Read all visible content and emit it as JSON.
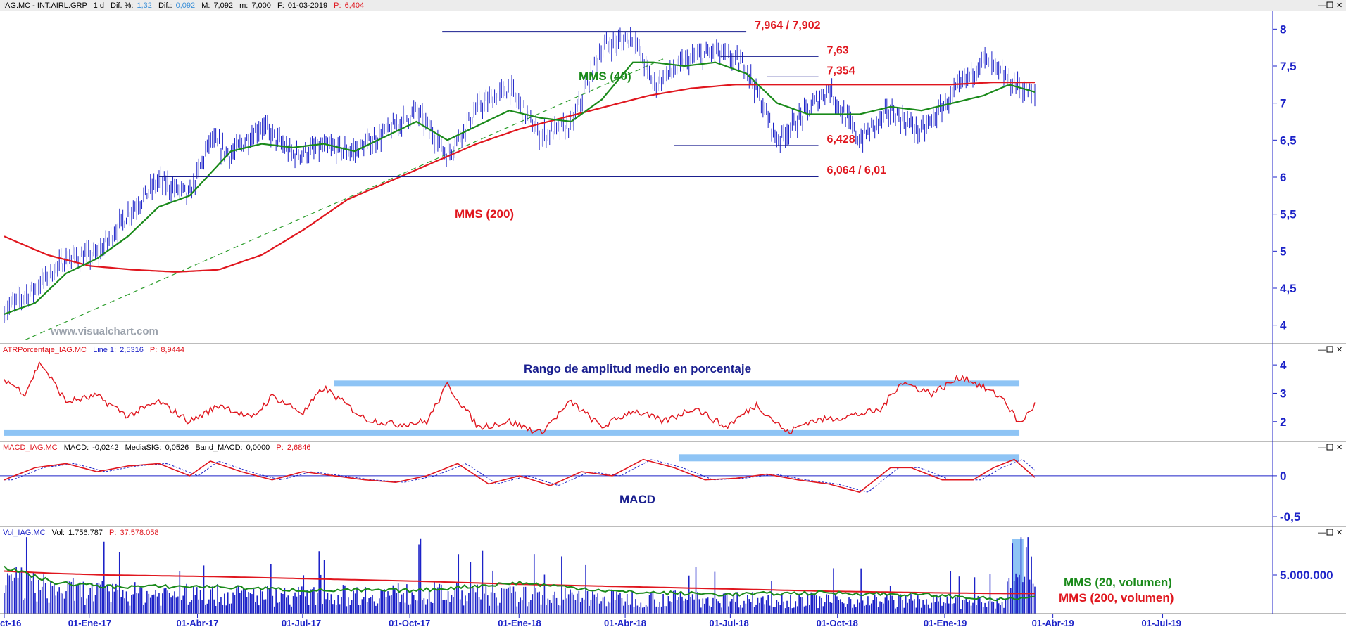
{
  "chart_data": [
    {
      "type": "line",
      "panel": "price",
      "header": {
        "symbol": "IAG.MC - INT.AIRL.GRP",
        "period": "1 d",
        "dif_pct_label": "Dif. %:",
        "dif_pct": "1,32",
        "dif_label": "Dif.:",
        "dif": "0,092",
        "max_label": "M:",
        "max": "7,092",
        "min_label": "m:",
        "min": "7,000",
        "date_label": "F:",
        "date": "01-03-2019",
        "last_label": "P:",
        "last": "6,404"
      },
      "watermark": "www.visualchart.com",
      "y_ticks": [
        "8",
        "7,5",
        "7",
        "6,5",
        "6",
        "5,5",
        "5",
        "4,5",
        "4"
      ],
      "y_tick_values": [
        8,
        7.5,
        7,
        6.5,
        6,
        5.5,
        5,
        4.5,
        4
      ],
      "ylim": [
        3.75,
        8.25
      ],
      "price_anchors_x": [
        0,
        0.03,
        0.06,
        0.09,
        0.12,
        0.15,
        0.18,
        0.2,
        0.22,
        0.25,
        0.28,
        0.31,
        0.34,
        0.37,
        0.4,
        0.43,
        0.46,
        0.49,
        0.52,
        0.55,
        0.58,
        0.61,
        0.63,
        0.66,
        0.69,
        0.72,
        0.75,
        0.78,
        0.8,
        0.83,
        0.86,
        0.89,
        0.92,
        0.95,
        0.975,
        1.0
      ],
      "price_anchors_y": [
        4.2,
        4.5,
        4.9,
        4.95,
        5.5,
        5.95,
        5.75,
        6.5,
        6.3,
        6.7,
        6.3,
        6.4,
        6.35,
        6.6,
        6.9,
        6.3,
        6.95,
        7.2,
        6.55,
        6.7,
        7.75,
        7.9,
        7.25,
        7.55,
        7.7,
        7.5,
        6.5,
        6.9,
        7.2,
        6.5,
        6.9,
        6.6,
        7.1,
        7.6,
        7.3,
        7.1
      ],
      "mms40_anchors_y": [
        4.15,
        4.3,
        4.7,
        4.9,
        5.2,
        5.6,
        5.75,
        6.05,
        6.35,
        6.45,
        6.4,
        6.45,
        6.35,
        6.55,
        6.75,
        6.5,
        6.7,
        6.9,
        6.8,
        6.75,
        7.05,
        7.55,
        7.55,
        7.5,
        7.55,
        7.4,
        7.0,
        6.85,
        6.85,
        6.85,
        6.95,
        6.9,
        7.0,
        7.1,
        7.25,
        7.15
      ],
      "mms200_anchors_y": [
        5.2,
        4.95,
        4.8,
        4.75,
        4.72,
        4.75,
        4.95,
        5.3,
        5.7,
        5.95,
        6.2,
        6.45,
        6.65,
        6.8,
        6.95,
        7.1,
        7.2,
        7.25,
        7.25,
        7.25,
        7.25,
        7.25,
        7.25,
        7.28,
        7.28
      ],
      "levels": [
        {
          "label": "7,964 / 7,902",
          "value": 7.964,
          "x0": 0.425,
          "x1": 0.72
        },
        {
          "label": "7,63",
          "value": 7.63,
          "x0": 0.695,
          "x1": 0.79
        },
        {
          "label": "7,354",
          "value": 7.354,
          "x0": 0.74,
          "x1": 0.79
        },
        {
          "label": "6,428",
          "value": 6.428,
          "x0": 0.65,
          "x1": 0.79
        },
        {
          "label": "6,064 / 6,01",
          "value": 6.01,
          "x0": 0.15,
          "x1": 0.79
        }
      ],
      "trendline": {
        "from": [
          0.02,
          3.8
        ],
        "to": [
          0.64,
          7.6
        ]
      },
      "annotations": [
        {
          "label": "MMS (40)",
          "color": "#1a8a1a"
        },
        {
          "label": "MMS (200)",
          "color": "#e0161e"
        }
      ],
      "colors": {
        "price": "#1c22c8",
        "mms40": "#1a8a1a",
        "mms200": "#e0161e",
        "levels": "#1a1f8f",
        "trend": "#2e9e2e"
      }
    },
    {
      "type": "line",
      "panel": "atr",
      "header": {
        "name": "ATRPorcentaje_IAG.MC",
        "line_label": "Line 1:",
        "line": "2,5316",
        "p_label": "P:",
        "p": "8,9444"
      },
      "title": "Rango de amplitud medio en porcentaje",
      "y_ticks": [
        "4",
        "3",
        "2"
      ],
      "y_tick_values": [
        4,
        3,
        2
      ],
      "ylim": [
        1.3,
        4.4
      ],
      "anchors_x": [
        0,
        0.02,
        0.035,
        0.06,
        0.09,
        0.12,
        0.15,
        0.18,
        0.21,
        0.24,
        0.26,
        0.29,
        0.31,
        0.35,
        0.38,
        0.41,
        0.43,
        0.46,
        0.49,
        0.52,
        0.55,
        0.58,
        0.61,
        0.64,
        0.67,
        0.7,
        0.73,
        0.76,
        0.78,
        0.82,
        0.85,
        0.87,
        0.9,
        0.93,
        0.95,
        0.97,
        0.985,
        1.0
      ],
      "anchors_y": [
        3.5,
        3.0,
        4.1,
        2.7,
        2.9,
        2.2,
        2.7,
        2.0,
        2.6,
        2.1,
        2.9,
        2.3,
        3.2,
        2.1,
        1.9,
        2.0,
        3.3,
        1.8,
        2.0,
        1.6,
        2.7,
        1.8,
        2.4,
        2.0,
        2.5,
        1.8,
        2.6,
        1.6,
        2.0,
        2.2,
        2.4,
        3.4,
        3.0,
        3.6,
        3.2,
        2.8,
        1.9,
        2.6
      ],
      "bands": [
        {
          "value": 3.35,
          "x0": 0.32,
          "x1": 0.985
        },
        {
          "value": 1.6,
          "x0": 0.0,
          "x1": 0.985
        }
      ],
      "colors": {
        "line": "#e0161e",
        "band": "#8ec4f5"
      }
    },
    {
      "type": "line",
      "panel": "macd",
      "header": {
        "name": "MACD_IAG.MC",
        "macd_label": "MACD:",
        "macd": "-0,0242",
        "sig_label": "MediaSIG:",
        "sig": "0,0526",
        "band_label": "Band_MACD:",
        "band": "0,0000",
        "p_label": "P:",
        "p": "2,6846"
      },
      "title": "MACD",
      "y_ticks": [
        "0",
        "-0,5"
      ],
      "y_tick_values": [
        0,
        -0.5
      ],
      "ylim": [
        -0.62,
        0.3
      ],
      "anchors_x": [
        0,
        0.03,
        0.06,
        0.09,
        0.12,
        0.15,
        0.18,
        0.2,
        0.23,
        0.26,
        0.29,
        0.32,
        0.35,
        0.38,
        0.41,
        0.44,
        0.47,
        0.5,
        0.53,
        0.56,
        0.59,
        0.62,
        0.65,
        0.68,
        0.71,
        0.74,
        0.77,
        0.8,
        0.83,
        0.86,
        0.88,
        0.91,
        0.94,
        0.96,
        0.98,
        1.0
      ],
      "anchors_y": [
        -0.05,
        0.1,
        0.15,
        0.05,
        0.12,
        0.15,
        0.0,
        0.18,
        0.05,
        -0.05,
        0.05,
        0.0,
        -0.05,
        -0.08,
        0.0,
        0.15,
        -0.1,
        0.0,
        -0.12,
        0.05,
        0.0,
        0.2,
        0.1,
        -0.05,
        -0.03,
        0.02,
        -0.05,
        -0.1,
        -0.2,
        0.1,
        0.1,
        -0.05,
        -0.05,
        0.1,
        0.2,
        -0.02
      ],
      "zero": 0,
      "band": {
        "value": 0.22,
        "x0": 0.655,
        "x1": 0.985
      },
      "colors": {
        "macd": "#e0161e",
        "signal": "#1c22c8",
        "zero": "#1c22c8",
        "band": "#8ec4f5"
      }
    },
    {
      "type": "bar",
      "panel": "volume",
      "header": {
        "name": "Vol_IAG.MC",
        "vol_label": "Vol:",
        "vol": "1.756.787",
        "p_label": "P:",
        "p": "37.578.058"
      },
      "y_ticks": [
        "5.000.000"
      ],
      "y_tick_values": [
        5000000
      ],
      "ylim": [
        0,
        10000000
      ],
      "volume_envelope_x": [
        0,
        0.05,
        0.1,
        0.2,
        0.3,
        0.4,
        0.5,
        0.6,
        0.7,
        0.8,
        0.9,
        0.97,
        0.98,
        1.0
      ],
      "volume_envelope_y": [
        5500000,
        4000000,
        3500000,
        3200000,
        3000000,
        3500000,
        3000000,
        2600000,
        2500000,
        2300000,
        2100000,
        1800000,
        9500000,
        9500000
      ],
      "mms20_anchors_y": [
        6000000,
        4000000,
        3500000,
        3500000,
        3000000,
        3000000,
        4000000,
        2800000,
        2500000,
        2700000,
        2400000,
        1800000,
        2000000,
        2000000
      ],
      "mms200_anchors_y": [
        5500000,
        5200000,
        5000000,
        4800000,
        4500000,
        4200000,
        3800000,
        3500000,
        3200000,
        2900000,
        2700000,
        2600000,
        2600000,
        2600000
      ],
      "annotations": [
        {
          "label": "MMS (20, volumen)",
          "color": "#1a8a1a"
        },
        {
          "label": "MMS (200, volumen)",
          "color": "#e0161e"
        }
      ],
      "colors": {
        "bars": "#1c22c8",
        "highlight": "#8ec4f5",
        "mms20": "#1a8a1a",
        "mms200": "#e0161e"
      }
    }
  ],
  "x_axis": {
    "labels": [
      "ct-16",
      "01-Ene-17",
      "01-Abr-17",
      "01-Jul-17",
      "01-Oct-17",
      "01-Ene-18",
      "01-Abr-18",
      "01-Jul-18",
      "01-Oct-18",
      "01-Ene-19",
      "01-Abr-19",
      "01-Jul-19"
    ],
    "positions": [
      0.0,
      0.0825,
      0.1875,
      0.2895,
      0.3935,
      0.4995,
      0.6025,
      0.7045,
      0.8085,
      0.9125,
      1.0175,
      1.124
    ]
  }
}
